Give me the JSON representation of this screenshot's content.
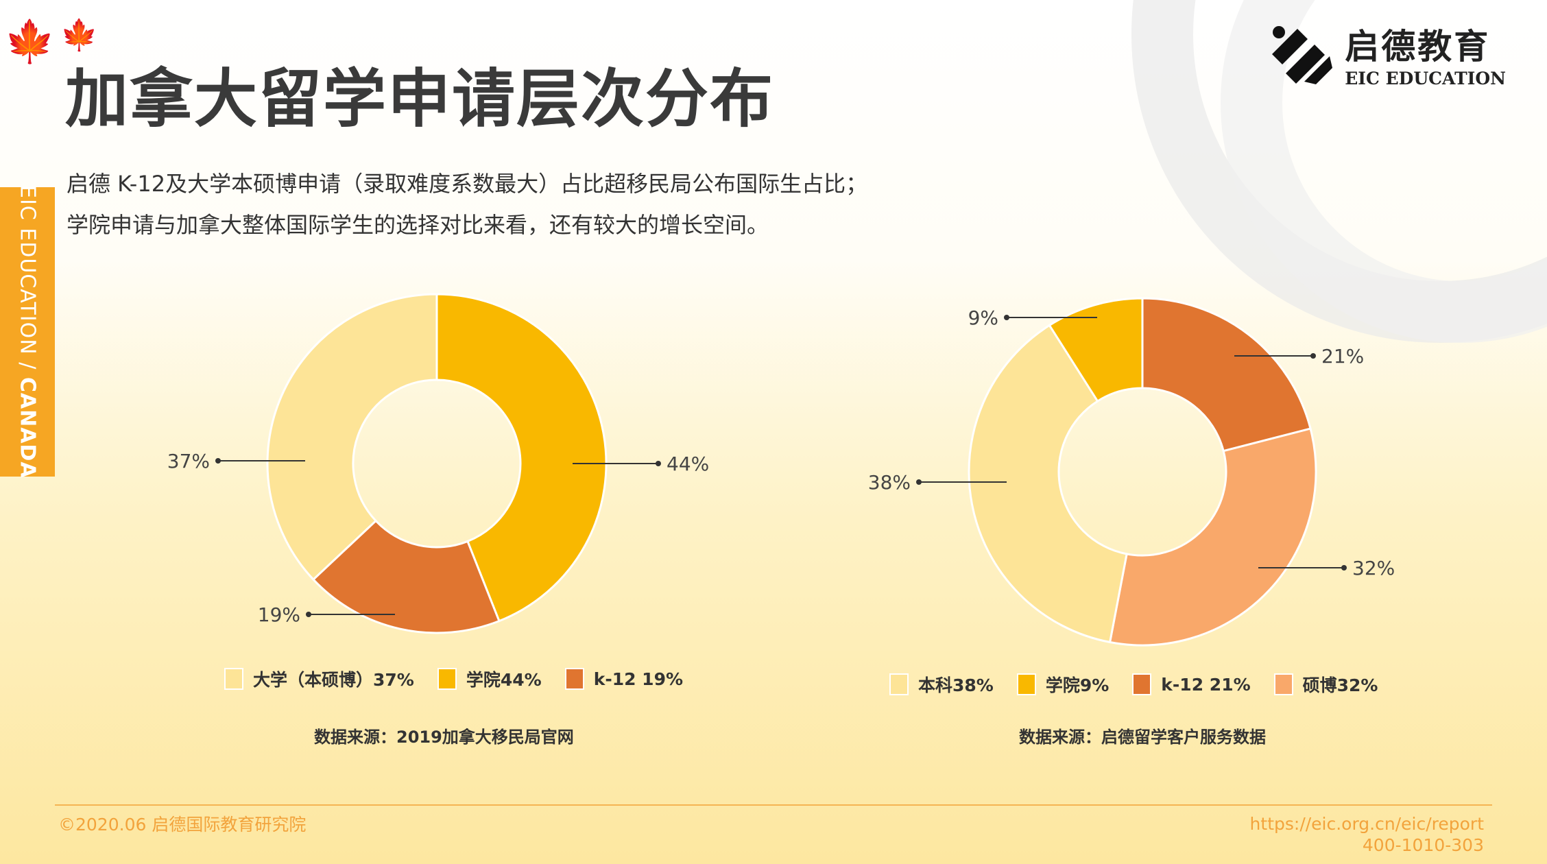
{
  "title": "加拿大留学申请层次分布",
  "description": [
    "启德 K-12及大学本硕博申请（录取难度系数最大）占比超移民局公布国际生占比；",
    "学院申请与加拿大整体国际学生的选择对比来看，还有较大的增长空间。"
  ],
  "side_tab": {
    "part1": "EIC EDUCATION / ",
    "part2": "CANADA"
  },
  "logo": {
    "cn": "启德教育",
    "en": "EIC EDUCATION"
  },
  "chart_data": [
    {
      "type": "pie",
      "donut": true,
      "start": "top",
      "direction": "clockwise",
      "slices": [
        {
          "name": "学院",
          "value": 44,
          "label": "44%",
          "color": "#F9B800"
        },
        {
          "name": "k-12",
          "value": 19,
          "label": "19%",
          "color": "#E07530"
        },
        {
          "name": "大学（本硕博）",
          "value": 37,
          "label": "37%",
          "color": "#FDE497"
        }
      ],
      "legend": [
        "大学（本硕博）37%",
        "学院44%",
        "k-12 19%"
      ],
      "source": "数据来源：2019加拿大移民局官网"
    },
    {
      "type": "pie",
      "donut": true,
      "start": "top",
      "direction": "clockwise",
      "slices": [
        {
          "name": "k-12",
          "value": 21,
          "label": "21%",
          "color": "#E07530"
        },
        {
          "name": "硕博",
          "value": 32,
          "label": "32%",
          "color": "#F9A86A"
        },
        {
          "name": "本科",
          "value": 38,
          "label": "38%",
          "color": "#FDE497"
        },
        {
          "name": "学院",
          "value": 9,
          "label": "9%",
          "color": "#F9B800"
        }
      ],
      "legend": [
        "本科38%",
        "学院9%",
        "k-12 21%",
        "硕博32%"
      ],
      "source": "数据来源：启德留学客户服务数据"
    }
  ],
  "footer": {
    "copyright": "©2020.06 启德国际教育研究院",
    "url": "https://eic.org.cn/eic/report",
    "phone": "400-1010-303"
  }
}
